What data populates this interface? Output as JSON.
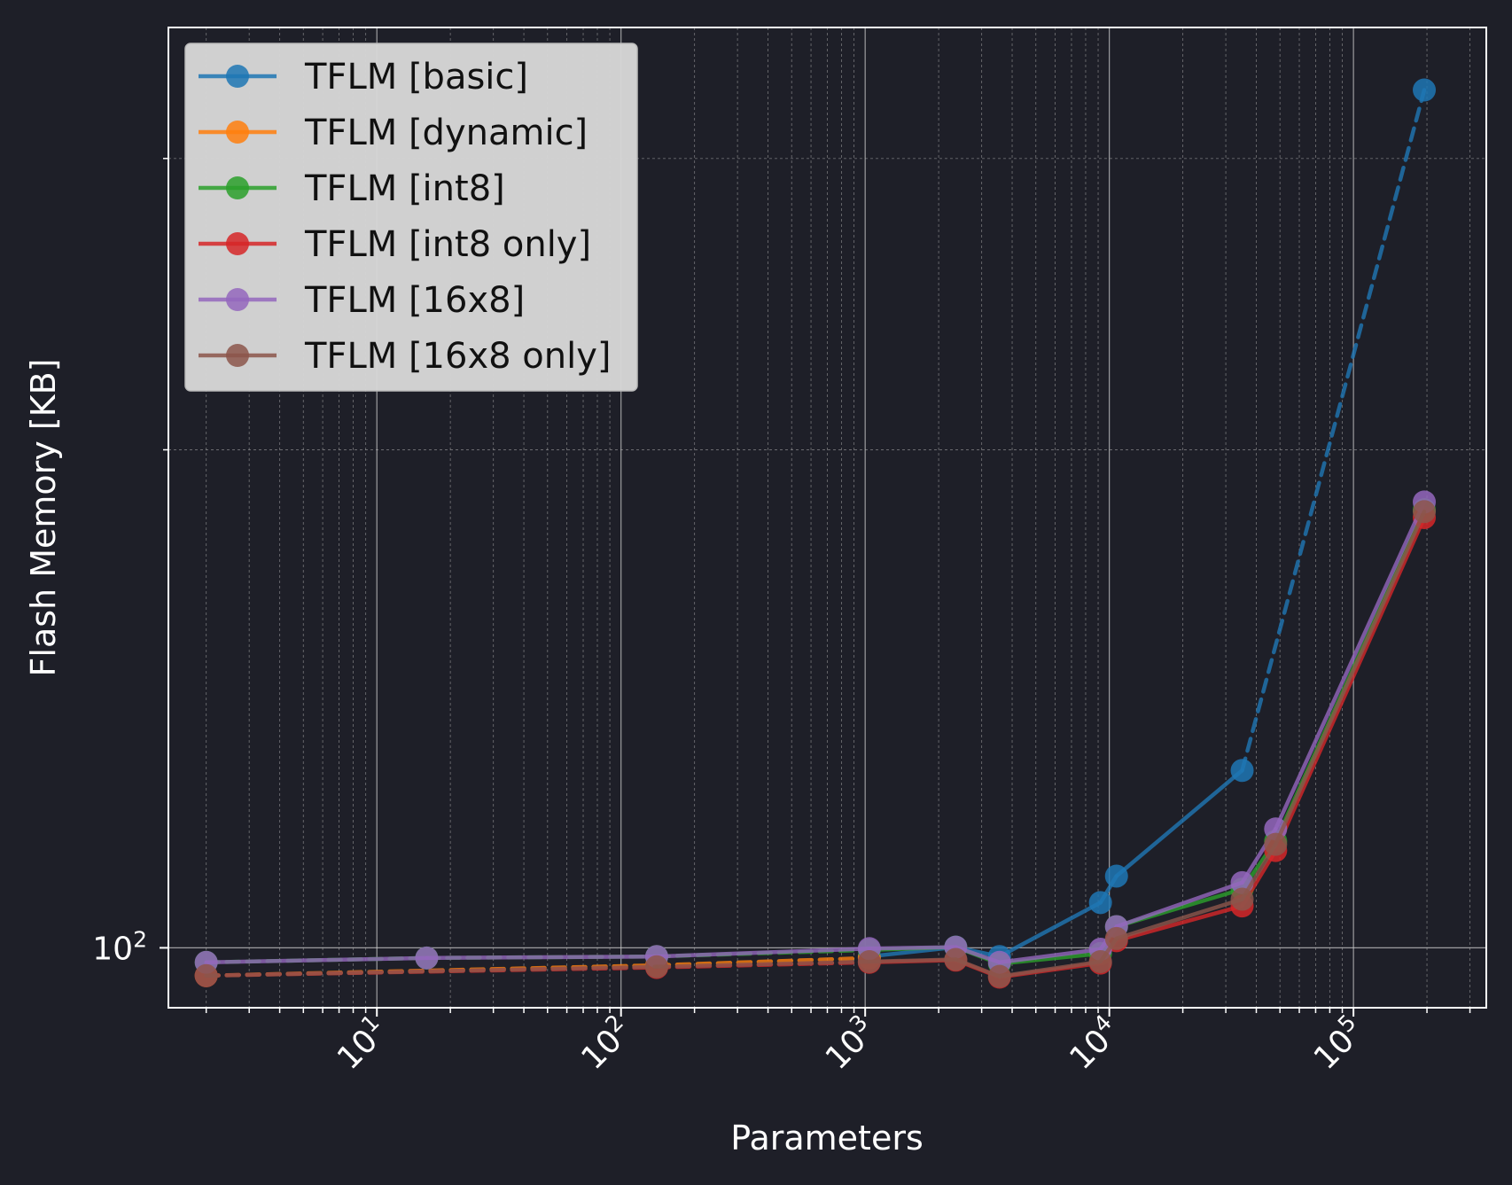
{
  "chart_data": {
    "type": "line",
    "xlabel": "Parameters",
    "ylabel": "Flash Memory [KB]",
    "xscale": "log",
    "yscale": "log",
    "xlim": [
      1.4,
      350000
    ],
    "ylim": [
      92.0,
      360.0
    ],
    "x_ticks": [
      {
        "value": 10,
        "base": "10",
        "exp": "1"
      },
      {
        "value": 100,
        "base": "10",
        "exp": "2"
      },
      {
        "value": 1000,
        "base": "10",
        "exp": "3"
      },
      {
        "value": 10000,
        "base": "10",
        "exp": "4"
      },
      {
        "value": 100000,
        "base": "10",
        "exp": "5"
      }
    ],
    "y_ticks": [
      {
        "value": 100,
        "base": "10",
        "exp": "2"
      }
    ],
    "grid": true,
    "legend_position": "upper-left",
    "series": [
      {
        "name": "TFLM [basic]",
        "color": "#1f77b4",
        "x": [
          1040,
          2350,
          3550,
          9200,
          10700,
          35000,
          195000
        ],
        "y": [
          98.8,
          100.1,
          98.8,
          106.5,
          110.5,
          128.0,
          330.0
        ],
        "style": [
          "solid",
          "solid",
          "solid",
          "solid",
          "solid",
          "dashed"
        ]
      },
      {
        "name": "TFLM [dynamic]",
        "color": "#ff7f0e",
        "x": [
          2,
          140,
          1040
        ],
        "y": [
          96.2,
          97.6,
          98.6
        ],
        "style": [
          "dashed",
          "dashed"
        ]
      },
      {
        "name": "TFLM [int8]",
        "color": "#2ca02c",
        "x": [
          2,
          16,
          140,
          1040,
          2350,
          3550,
          9200,
          10700,
          35000,
          48000,
          195000
        ],
        "y": [
          98.0,
          98.6,
          98.8,
          99.7,
          100.1,
          97.8,
          99.2,
          103.0,
          108.5,
          116.0,
          184.0
        ],
        "style": [
          "dashed",
          "dashed",
          "dashed",
          "solid",
          "solid",
          "solid",
          "solid",
          "solid",
          "solid",
          "solid"
        ]
      },
      {
        "name": "TFLM [int8 only]",
        "color": "#d62728",
        "x": [
          2,
          140,
          1040,
          2350,
          3550,
          9200,
          10700,
          35000,
          48000,
          195000
        ],
        "y": [
          96.2,
          97.3,
          98.0,
          98.3,
          96.0,
          97.9,
          101.0,
          106.0,
          114.5,
          182.0
        ],
        "style": [
          "dashed",
          "dashed",
          "solid",
          "solid",
          "solid",
          "solid",
          "solid",
          "solid",
          "solid"
        ]
      },
      {
        "name": "TFLM [16x8]",
        "color": "#9467bd",
        "x": [
          2,
          16,
          140,
          1040,
          2350,
          3550,
          9200,
          10700,
          35000,
          48000,
          195000
        ],
        "y": [
          98.0,
          98.6,
          98.8,
          99.9,
          100.1,
          98.0,
          99.8,
          103.0,
          109.5,
          118.0,
          186.0
        ],
        "style": [
          "solid",
          "solid",
          "solid",
          "solid",
          "solid",
          "solid",
          "solid",
          "solid",
          "solid",
          "solid"
        ]
      },
      {
        "name": "TFLM [16x8 only]",
        "color": "#8c564b",
        "x": [
          2,
          140,
          1040,
          2350,
          3550,
          9200,
          10700,
          35000,
          48000,
          195000
        ],
        "y": [
          96.2,
          97.4,
          98.1,
          98.4,
          96.1,
          98.1,
          101.3,
          107.0,
          115.5,
          183.5
        ],
        "style": [
          "dashed",
          "dashed",
          "solid",
          "solid",
          "solid",
          "solid",
          "solid",
          "solid",
          "solid"
        ]
      }
    ]
  }
}
